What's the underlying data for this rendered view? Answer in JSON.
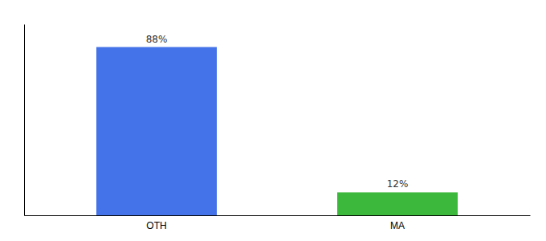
{
  "chart_data": {
    "type": "bar",
    "categories": [
      "OTH",
      "MA"
    ],
    "values": [
      88,
      12
    ],
    "value_labels": [
      "88%",
      "12%"
    ],
    "data_labels": true,
    "colors": [
      "#4472e8",
      "#3cb83c"
    ],
    "ylim": [
      0,
      100
    ],
    "tick_labels": "x"
  }
}
